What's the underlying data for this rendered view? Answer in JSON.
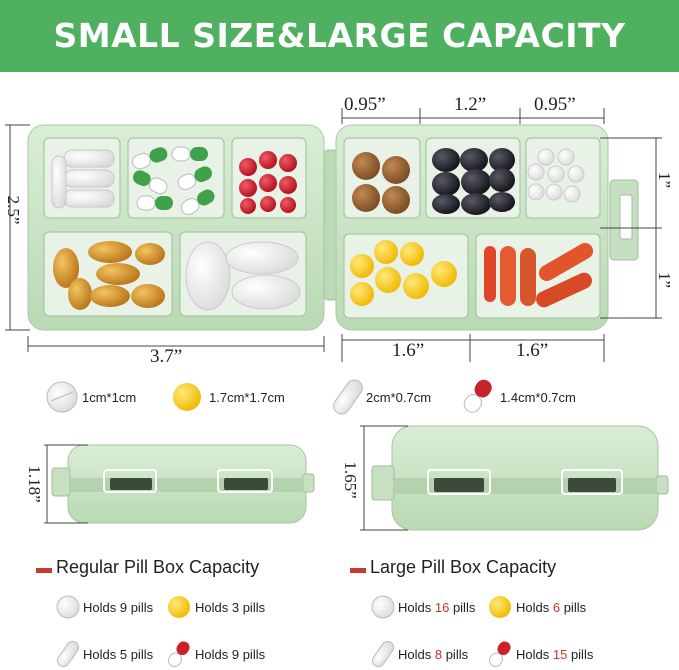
{
  "banner": {
    "title": "SMALL SIZE&LARGE CAPACITY",
    "color": "#4fb05f"
  },
  "dimensions": {
    "left_width": "3.7”",
    "left_height": "2.5”",
    "top_small_1": "0.95”",
    "top_mid": "1.2”",
    "top_small_2": "0.95”",
    "right_row_1": "1”",
    "right_row_2": "1”",
    "bottom_1": "1.6”",
    "bottom_2": "1.6”",
    "regular_height": "1.18”",
    "large_height": "1.65”"
  },
  "pill_sizes": [
    {
      "icon": "white-round-pill-icon",
      "label": "1cm*1cm"
    },
    {
      "icon": "yellow-softgel-icon",
      "label": "1.7cm*1.7cm"
    },
    {
      "icon": "white-oval-pill-icon",
      "label": "2cm*0.7cm"
    },
    {
      "icon": "red-capsule-icon",
      "label": "1.4cm*0.7cm"
    }
  ],
  "regular": {
    "title": "Regular Pill Box Capacity",
    "rows": [
      {
        "prefix": "Holds ",
        "count": "9",
        "suffix": " pills"
      },
      {
        "prefix": "Holds ",
        "count": "3",
        "suffix": " pills"
      },
      {
        "prefix": "Holds ",
        "count": "5",
        "suffix": " pills"
      },
      {
        "prefix": "Holds ",
        "count": "9",
        "suffix": " pills"
      }
    ]
  },
  "large": {
    "title": "Large Pill Box Capacity",
    "rows": [
      {
        "prefix": "Holds ",
        "count": "16",
        "suffix": " pills"
      },
      {
        "prefix": "Holds ",
        "count": "6",
        "suffix": " pills"
      },
      {
        "prefix": "Holds ",
        "count": "8",
        "suffix": " pills"
      },
      {
        "prefix": "Holds ",
        "count": "15",
        "suffix": " pills"
      }
    ]
  },
  "colors": {
    "box_green": "#c9e4c5",
    "accent_red": "#c93b32",
    "pill_yellow": "#f6c61a"
  }
}
